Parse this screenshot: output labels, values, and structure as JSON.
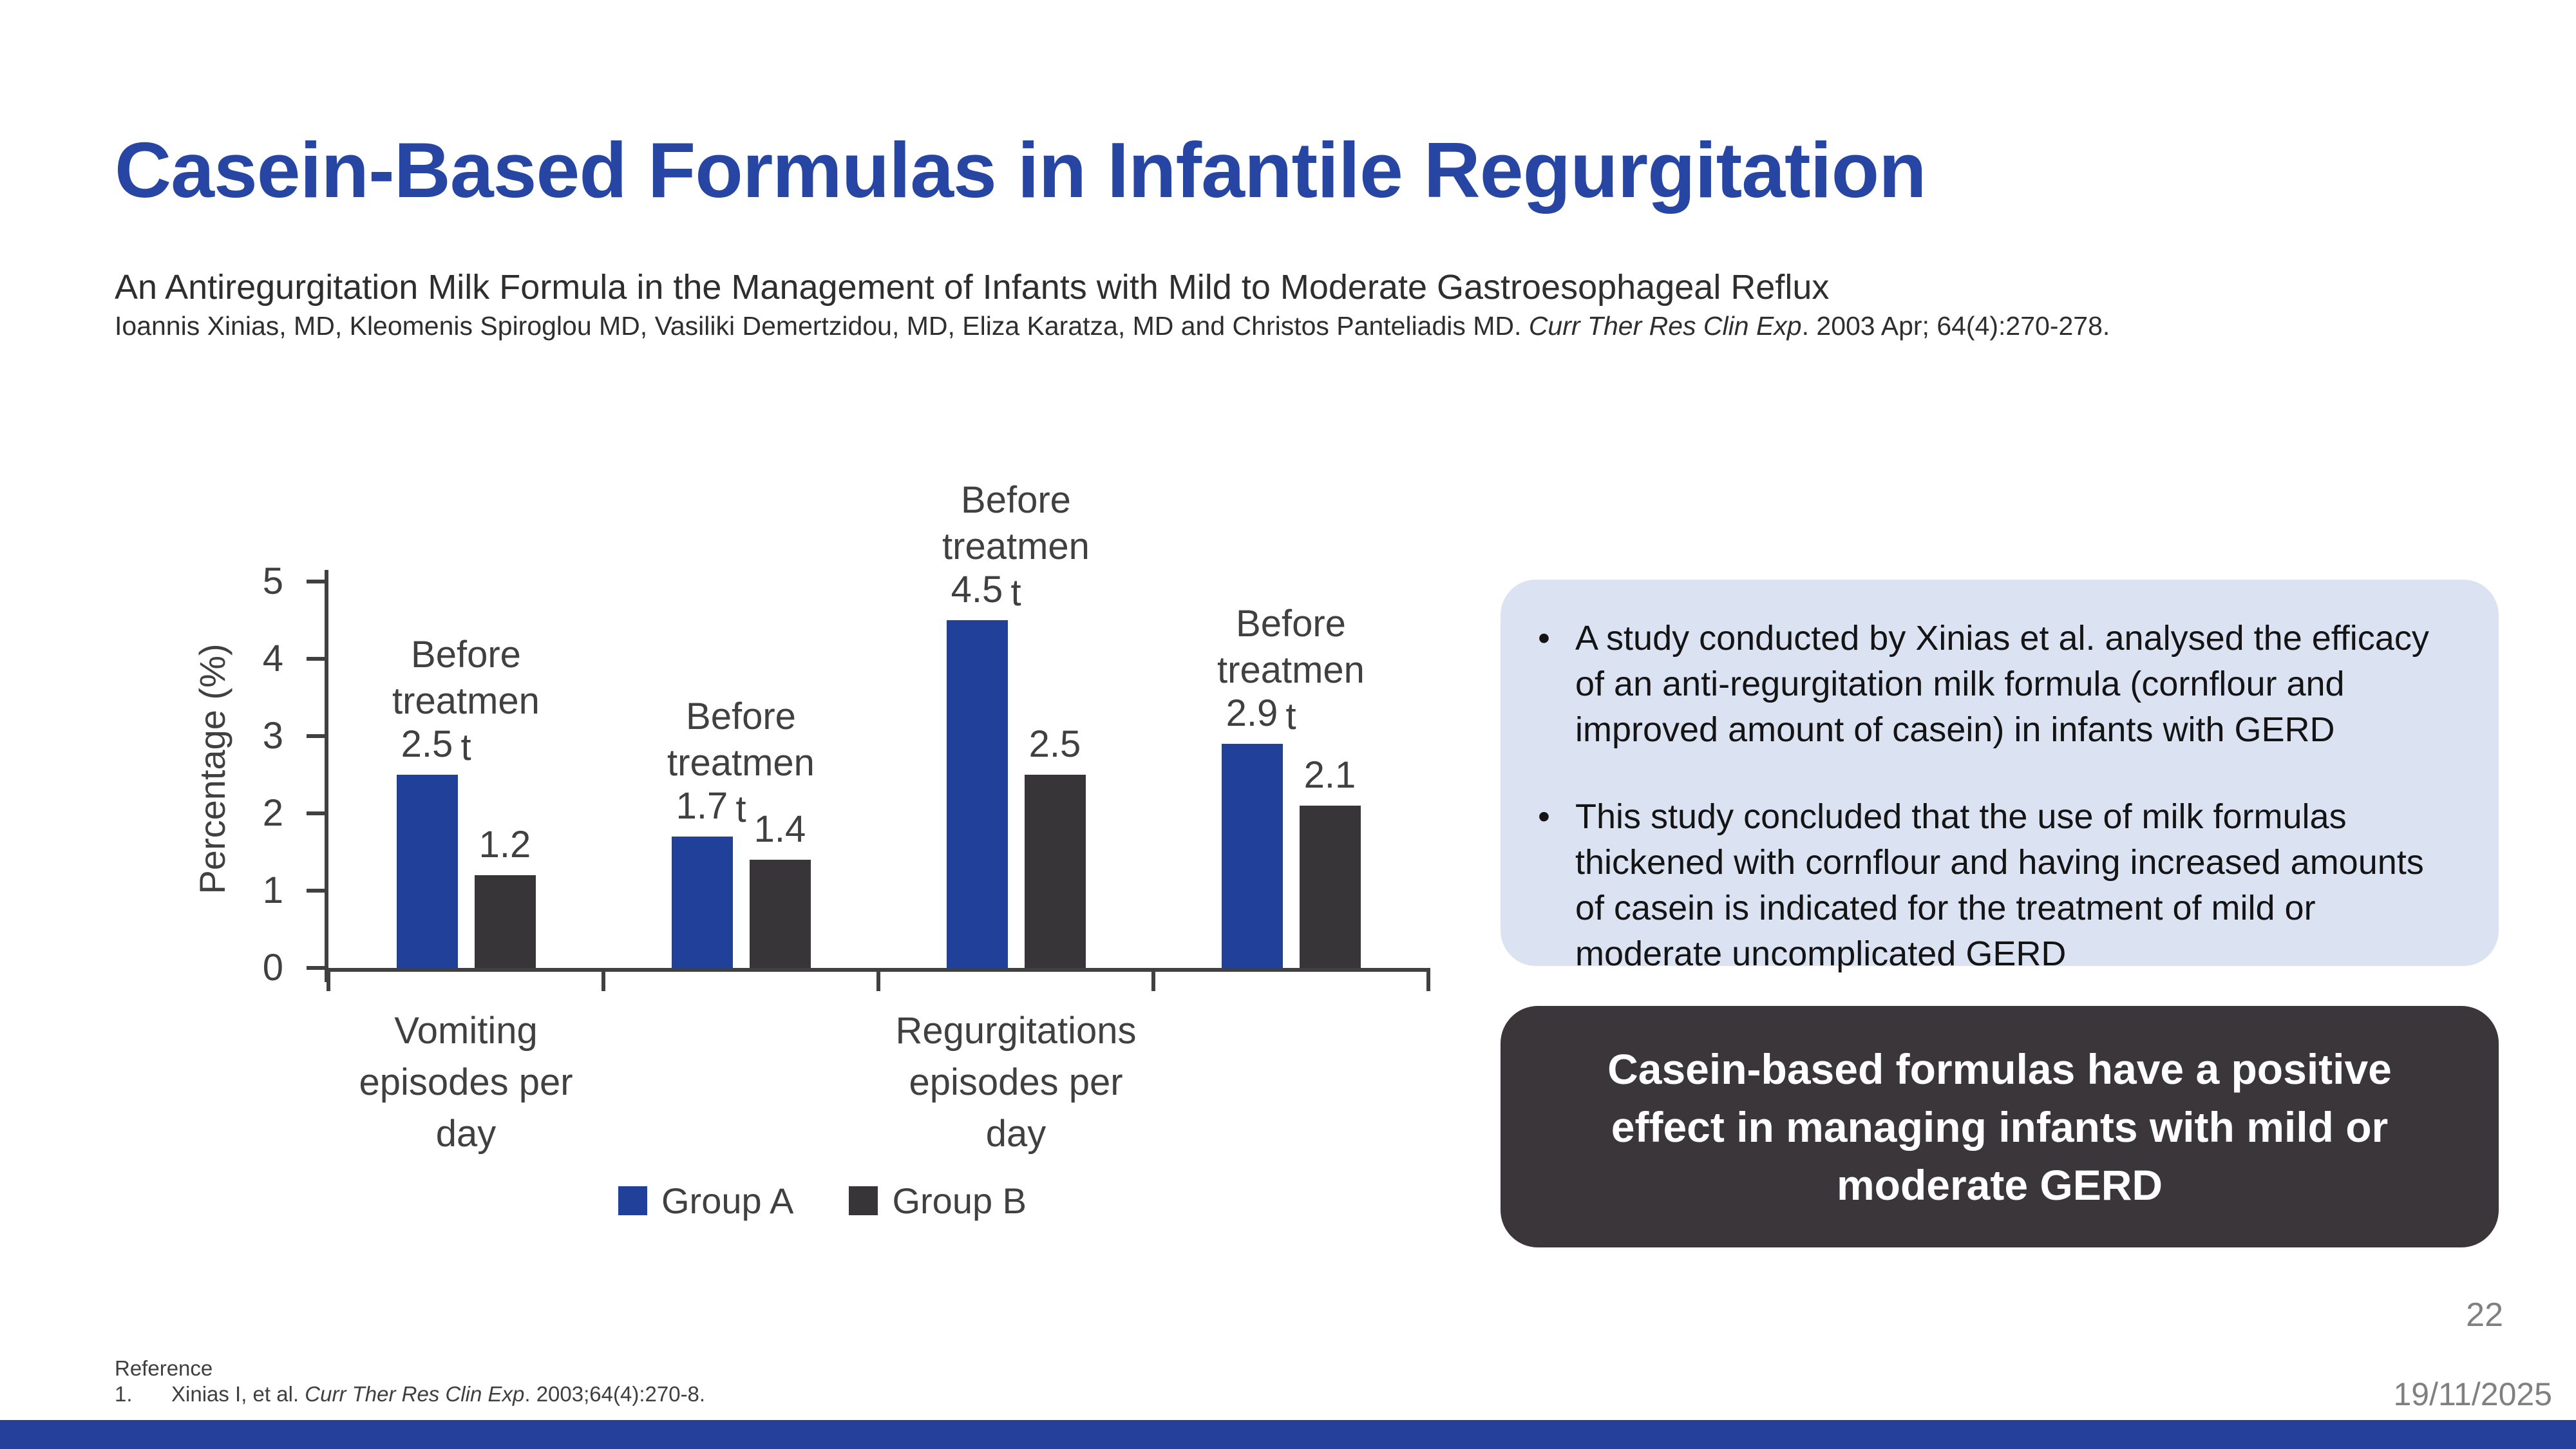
{
  "slide": {
    "title": "Casein-Based Formulas in Infantile Regurgitation",
    "subtitle": "An Antiregurgitation Milk Formula in the Management of Infants with Mild to Moderate Gastroesophageal Reflux",
    "citation_prefix": "Ioannis Xinias, MD, Kleomenis Spiroglou MD, Vasiliki Demertzidou, MD, Eliza Karatza, MD and Christos Panteliadis MD. ",
    "citation_italic": "Curr Ther Res Clin Exp",
    "citation_suffix": ". 2003 Apr; 64(4):270-278.",
    "page_number": "22",
    "date": "19/11/2025"
  },
  "bullets_box": {
    "items": [
      "A study conducted by Xinias et al. analysed the efficacy of an anti-regurgitation milk formula (cornflour and improved amount of casein) in infants with GERD",
      "This study concluded that the use of milk formulas thickened with cornflour and having increased amounts of casein is indicated for the treatment of mild or moderate uncomplicated GERD"
    ],
    "bullet_glyph": "•",
    "background_color": "#dbe3f3"
  },
  "conclusion_box": {
    "text": "Casein-based formulas have a positive effect in managing infants with mild or moderate GERD",
    "background_color": "#3a363a",
    "text_color": "#ffffff"
  },
  "reference": {
    "heading": "Reference",
    "item_number": "1.",
    "item_prefix": "Xinias I, et al. ",
    "item_italic": "Curr Ther Res Clin Exp",
    "item_suffix": ". 2003;64(4):270-8."
  },
  "chart_data": {
    "type": "bar",
    "title": "",
    "xlabel": "",
    "ylabel": "Percentage (%)",
    "ylim": [
      0,
      5
    ],
    "yticks": [
      0,
      1,
      2,
      3,
      4,
      5
    ],
    "grid": false,
    "legend_position": "bottom",
    "series": [
      {
        "name": "Group A",
        "color": "#21409a",
        "values": [
          2.5,
          1.7,
          4.5,
          2.9
        ]
      },
      {
        "name": "Group B",
        "color": "#383538",
        "values": [
          1.2,
          1.4,
          2.5,
          2.1
        ]
      }
    ],
    "cluster_labels": [
      {
        "lines": [
          "Before",
          "treatmen",
          "t"
        ],
        "text": "Before treatment"
      },
      {
        "lines": [
          "Before",
          "treatmen",
          "t"
        ],
        "text": "Before treatment"
      },
      {
        "lines": [
          "Before",
          "treatmen",
          "t"
        ],
        "text": "Before treatment"
      },
      {
        "lines": [
          "Before",
          "treatmen",
          "t"
        ],
        "text": "Before treatment"
      }
    ],
    "group_labels": [
      {
        "cluster_index": 0,
        "lines": [
          "Vomiting",
          "episodes per",
          "day"
        ],
        "text": "Vomiting episodes per day"
      },
      {
        "cluster_index": 2,
        "lines": [
          "Regurgitations",
          "episodes per",
          "day"
        ],
        "text": "Regurgitations episodes per day"
      }
    ],
    "axis_color": "#404040",
    "label_color": "#404040"
  }
}
